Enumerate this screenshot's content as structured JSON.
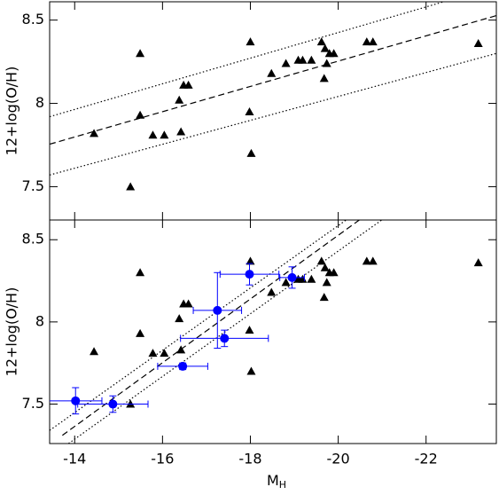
{
  "chart_data": [
    {
      "type": "scatter",
      "ylabel": "12+log(O/H)",
      "show_xtick_labels": false,
      "xlim": [
        -13.43,
        -23.6
      ],
      "xticks": [
        -14,
        -16,
        -18,
        -20,
        -22
      ],
      "ylim": [
        7.3,
        8.61
      ],
      "yticks": [
        7.5,
        8,
        8.5
      ],
      "series": [
        {
          "marker": "triangle",
          "color": "#000000",
          "x": [
            -14.44,
            -15.49,
            -15.49,
            -15.78,
            -16.04,
            -16.38,
            -16.42,
            -16.48,
            -16.59,
            -18.0,
            -17.98,
            -18.02,
            -15.27,
            -18.48,
            -18.81,
            -19.09,
            -19.19,
            -19.39,
            -19.62,
            -19.7,
            -19.8,
            -19.74,
            -19.9,
            -19.68,
            -20.65,
            -20.79,
            -23.19
          ],
          "values": [
            7.82,
            8.3,
            7.93,
            7.81,
            7.81,
            8.02,
            7.83,
            8.11,
            8.11,
            8.37,
            7.95,
            7.7,
            7.5,
            8.18,
            8.24,
            8.26,
            8.26,
            8.26,
            8.37,
            8.33,
            8.3,
            8.24,
            8.3,
            8.15,
            8.37,
            8.37,
            8.36
          ]
        },
        {
          "linestyle": "dashed",
          "color": "#000000",
          "x": [
            -13.43,
            -23.6
          ],
          "values": [
            7.755,
            8.527
          ]
        },
        {
          "linestyle": "dotted",
          "color": "#000000",
          "x": [
            -13.43,
            -22.4
          ],
          "values": [
            7.92,
            8.61
          ]
        },
        {
          "linestyle": "dotted",
          "color": "#000000",
          "x": [
            -13.43,
            -23.6
          ],
          "values": [
            7.57,
            8.3
          ]
        }
      ]
    },
    {
      "type": "scatter",
      "ylabel": "12+log(O/H)",
      "xlabel": "M",
      "xlabel_sub": "H",
      "show_xtick_labels": true,
      "xlim": [
        -13.43,
        -23.6
      ],
      "xticks": [
        -14,
        -16,
        -18,
        -20,
        -22
      ],
      "ylim": [
        7.26,
        8.62
      ],
      "yticks": [
        7.5,
        8,
        8.5
      ],
      "series": [
        {
          "marker": "triangle",
          "color": "#000000",
          "x": [
            -14.44,
            -15.49,
            -15.49,
            -15.78,
            -16.04,
            -16.38,
            -16.42,
            -16.48,
            -16.59,
            -18.0,
            -17.98,
            -18.02,
            -15.27,
            -18.48,
            -18.81,
            -19.09,
            -19.19,
            -19.39,
            -19.62,
            -19.7,
            -19.8,
            -19.74,
            -19.9,
            -19.68,
            -20.65,
            -20.79,
            -23.19
          ],
          "values": [
            7.82,
            8.3,
            7.93,
            7.81,
            7.81,
            8.02,
            7.83,
            8.11,
            8.11,
            8.37,
            7.95,
            7.7,
            7.5,
            8.18,
            8.24,
            8.26,
            8.26,
            8.26,
            8.37,
            8.33,
            8.3,
            8.24,
            8.3,
            8.15,
            8.37,
            8.37,
            8.36
          ]
        },
        {
          "linestyle": "dashed",
          "color": "#000000",
          "x": [
            -13.72,
            -20.48
          ],
          "values": [
            7.31,
            8.62
          ]
        },
        {
          "linestyle": "dotted",
          "color": "#000000",
          "x": [
            -13.43,
            -20.18
          ],
          "values": [
            7.34,
            8.62
          ]
        },
        {
          "linestyle": "dotted",
          "color": "#000000",
          "x": [
            -13.86,
            -20.99
          ],
          "values": [
            7.26,
            8.62
          ]
        },
        {
          "marker": "circle",
          "color": "#0000ff",
          "x": [
            -14.02,
            -14.87,
            -16.46,
            -17.41,
            -17.25,
            -17.98,
            -18.95
          ],
          "xerr": [
            0.6,
            0.8,
            0.57,
            1.0,
            0.55,
            0.67,
            0.28
          ],
          "values": [
            7.52,
            7.5,
            7.73,
            7.9,
            8.07,
            8.29,
            8.27
          ],
          "yerr": [
            0.08,
            0.05,
            0.02,
            0.05,
            0.23,
            0.065,
            0.065
          ]
        }
      ]
    }
  ]
}
